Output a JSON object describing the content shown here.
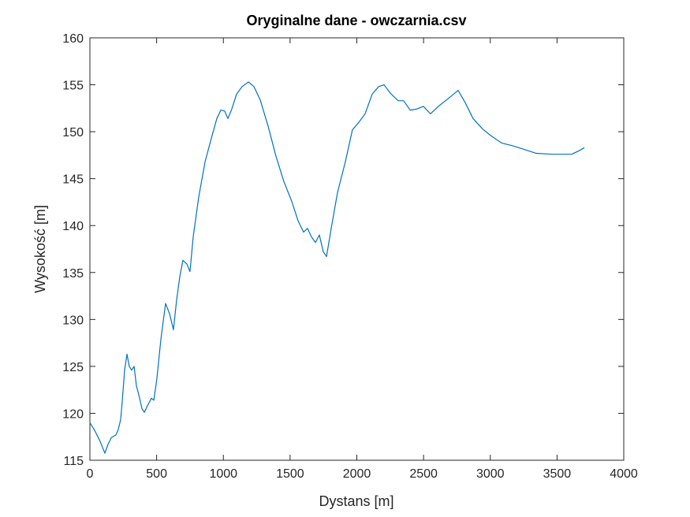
{
  "chart_data": {
    "type": "line",
    "title": "Oryginalne dane - owczarnia.csv",
    "xlabel": "Dystans [m]",
    "ylabel": "Wysokość [m]",
    "x": [
      0,
      35,
      77,
      112,
      136,
      160,
      195,
      213,
      230,
      242,
      260,
      278,
      295,
      313,
      331,
      349,
      366,
      390,
      408,
      431,
      461,
      479,
      502,
      532,
      567,
      597,
      626,
      650,
      674,
      697,
      727,
      750,
      774,
      815,
      863,
      910,
      951,
      981,
      1010,
      1034,
      1063,
      1099,
      1140,
      1188,
      1229,
      1276,
      1335,
      1394,
      1453,
      1512,
      1560,
      1601,
      1630,
      1660,
      1690,
      1719,
      1749,
      1773,
      1808,
      1855,
      1914,
      1967,
      2015,
      2062,
      2115,
      2163,
      2204,
      2251,
      2310,
      2351,
      2399,
      2446,
      2499,
      2552,
      2611,
      2682,
      2759,
      2812,
      2871,
      2942,
      3002,
      3084,
      3167,
      3256,
      3344,
      3463,
      3610,
      3669,
      3705
    ],
    "values": [
      119.0,
      118.2,
      117.0,
      115.75,
      116.7,
      117.4,
      117.7,
      118.3,
      119.3,
      121.2,
      124.6,
      126.3,
      125.0,
      124.6,
      125.0,
      122.9,
      122.0,
      120.5,
      120.1,
      120.8,
      121.6,
      121.4,
      123.7,
      127.9,
      131.7,
      130.6,
      128.9,
      132.1,
      134.6,
      136.3,
      135.9,
      135.1,
      138.8,
      143.0,
      146.8,
      149.3,
      151.4,
      152.3,
      152.2,
      151.4,
      152.4,
      154.0,
      154.8,
      155.3,
      154.8,
      153.4,
      150.6,
      147.4,
      144.7,
      142.6,
      140.5,
      139.3,
      139.7,
      138.8,
      138.2,
      139.0,
      137.2,
      136.7,
      139.7,
      143.5,
      146.8,
      150.2,
      151.0,
      151.9,
      154.0,
      154.8,
      155.0,
      154.1,
      153.3,
      153.3,
      152.3,
      152.4,
      152.7,
      151.9,
      152.7,
      153.5,
      154.4,
      153.1,
      151.4,
      150.3,
      149.6,
      148.8,
      148.5,
      148.1,
      147.7,
      147.6,
      147.6,
      148.0,
      148.3
    ],
    "color": "#0072bd",
    "xlim": [
      0,
      4000
    ],
    "xticks": [
      0,
      500,
      1000,
      1500,
      2000,
      2500,
      3000,
      3500,
      4000
    ],
    "ylim": [
      115,
      160
    ],
    "yticks": [
      115,
      120,
      125,
      130,
      135,
      140,
      145,
      150,
      155,
      160
    ]
  }
}
